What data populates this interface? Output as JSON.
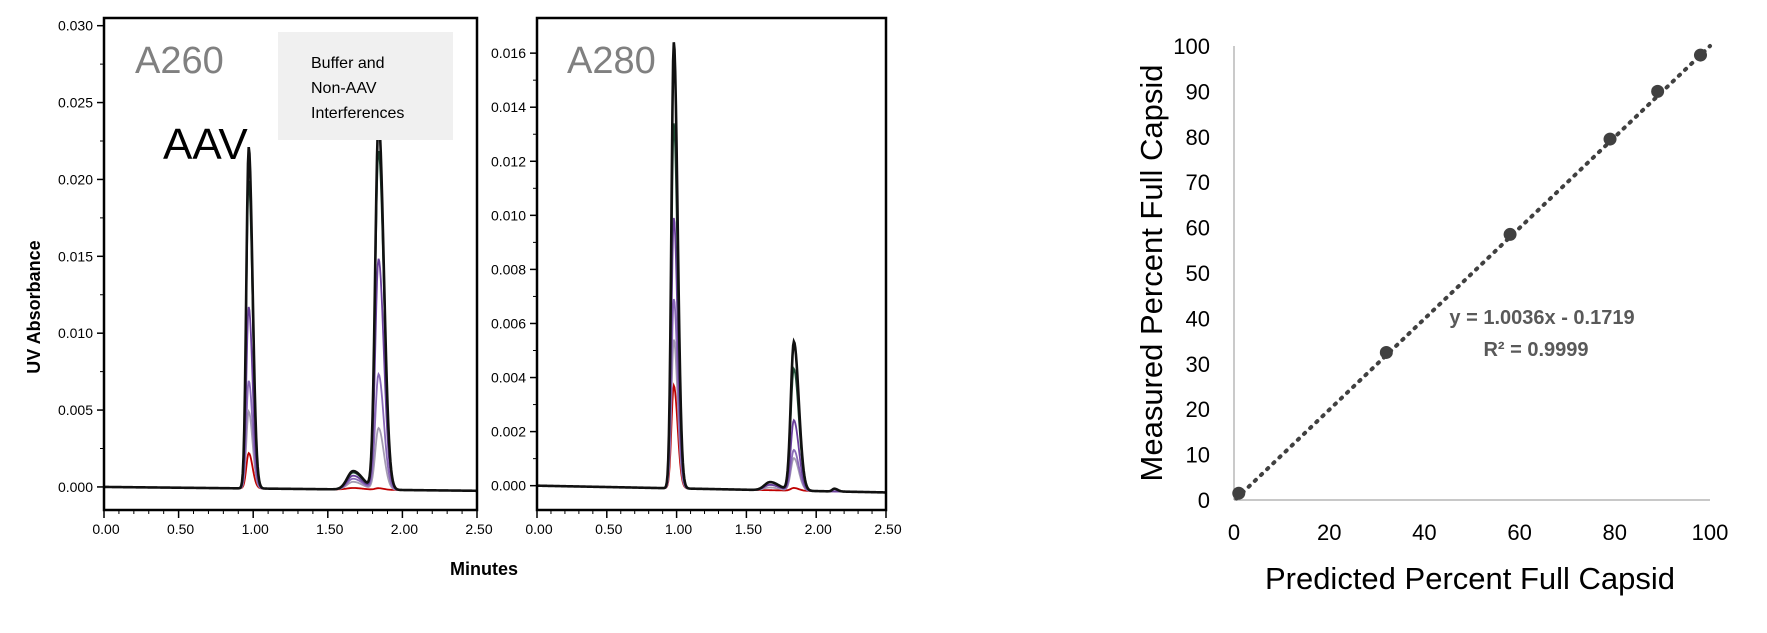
{
  "colors": {
    "frame": "#000000",
    "series_black": "#111111",
    "series_green": "#1f4d35",
    "series_purple": "#6a3f9c",
    "series_violet": "#8a6ab8",
    "series_gray": "#a49bb3",
    "series_red": "#c00000",
    "scatter_point": "#404040",
    "trendline": "#404040",
    "label_box": "#f0f0f0",
    "panel_tag": "#808080"
  },
  "chromatograms": {
    "y_axis_label": "UV Absorbance",
    "x_axis_label": "Minutes",
    "annotation_aav": "AAV",
    "annotation_box": [
      "Buffer  and",
      "Non-AAV",
      "Interferences"
    ],
    "x_ticks": [
      "0.00",
      "0.50",
      "1.00",
      "1.50",
      "2.00",
      "2.50"
    ]
  },
  "chart_data": [
    {
      "type": "line",
      "panel_label": "A260",
      "xlim": [
        0,
        2.5
      ],
      "ylim": [
        -0.0015,
        0.0305
      ],
      "y_ticks": [
        "0.000",
        "0.005",
        "0.010",
        "0.015",
        "0.020",
        "0.025",
        "0.030"
      ],
      "peaks": [
        {
          "x": 0.97,
          "width": 0.016
        },
        {
          "x": 1.67,
          "width": 0.04
        },
        {
          "x": 1.84,
          "width": 0.022
        }
      ],
      "series": [
        {
          "color_key": "series_black",
          "peak_heights": [
            0.0222,
            0.0012,
            0.024
          ]
        },
        {
          "color_key": "series_green",
          "peak_heights": [
            0.02,
            0.0011,
            0.022
          ]
        },
        {
          "color_key": "series_purple",
          "peak_heights": [
            0.0118,
            0.0009,
            0.015
          ]
        },
        {
          "color_key": "series_violet",
          "peak_heights": [
            0.007,
            0.0007,
            0.0075
          ]
        },
        {
          "color_key": "series_gray",
          "peak_heights": [
            0.005,
            0.0005,
            0.004
          ]
        },
        {
          "color_key": "series_red",
          "peak_heights": [
            0.0023,
            0.0001,
            0.0001
          ]
        }
      ]
    },
    {
      "type": "line",
      "panel_label": "A280",
      "xlim": [
        0,
        2.5
      ],
      "ylim": [
        -0.0009,
        0.0173
      ],
      "y_ticks": [
        "0.000",
        "0.002",
        "0.004",
        "0.006",
        "0.008",
        "0.010",
        "0.012",
        "0.014",
        "0.016"
      ],
      "peaks": [
        {
          "x": 0.98,
          "width": 0.017
        },
        {
          "x": 1.67,
          "width": 0.04
        },
        {
          "x": 1.84,
          "width": 0.022
        },
        {
          "x": 2.13,
          "width": 0.015
        }
      ],
      "series": [
        {
          "color_key": "series_black",
          "peak_heights": [
            0.0165,
            0.0003,
            0.0055,
            0.0001
          ]
        },
        {
          "color_key": "series_green",
          "peak_heights": [
            0.0135,
            0.0003,
            0.0045,
            0.0001
          ]
        },
        {
          "color_key": "series_purple",
          "peak_heights": [
            0.01,
            0.0002,
            0.0026,
            0.0
          ]
        },
        {
          "color_key": "series_violet",
          "peak_heights": [
            0.007,
            0.0002,
            0.0015,
            0.0
          ]
        },
        {
          "color_key": "series_gray",
          "peak_heights": [
            0.0055,
            0.0001,
            0.0012,
            0.0
          ]
        },
        {
          "color_key": "series_red",
          "peak_heights": [
            0.0038,
            0.0,
            0.0001,
            0.0
          ]
        }
      ]
    },
    {
      "type": "scatter",
      "xlabel": "Predicted  Percent  Full  Capsid",
      "ylabel": "Measured  Percent  Full  Capsid",
      "xlim": [
        0,
        100
      ],
      "ylim": [
        0,
        100
      ],
      "x_ticks": [
        0,
        20,
        40,
        60,
        80,
        100
      ],
      "y_ticks": [
        0,
        10,
        20,
        30,
        40,
        50,
        60,
        70,
        80,
        90,
        100
      ],
      "points": [
        {
          "x": 1,
          "y": 1.5
        },
        {
          "x": 32,
          "y": 32.5
        },
        {
          "x": 58,
          "y": 58.5
        },
        {
          "x": 79,
          "y": 79.5
        },
        {
          "x": 89,
          "y": 90
        },
        {
          "x": 98,
          "y": 98
        }
      ],
      "trendline": {
        "slope": 1.0036,
        "intercept": -0.1719
      },
      "equation": "y = 1.0036x  - 0.1719",
      "r_squared": "R² = 0.9999"
    }
  ]
}
